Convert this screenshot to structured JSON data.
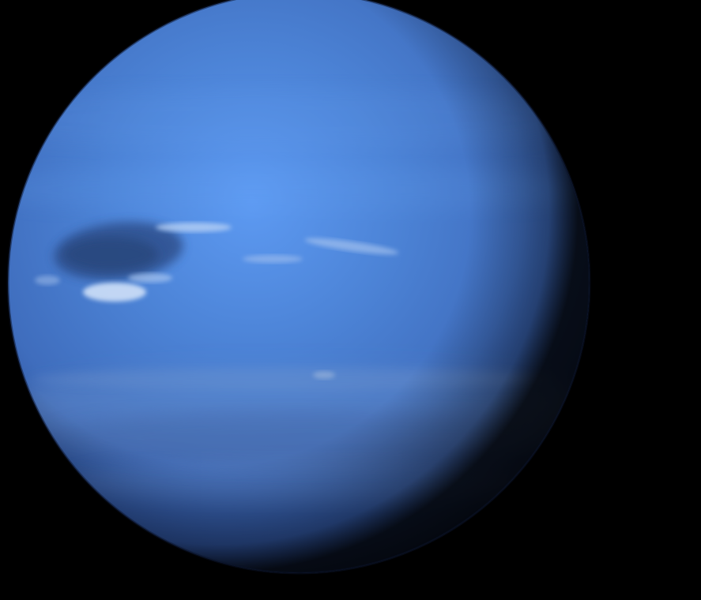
{
  "image": {
    "subject": "planet",
    "colors": {
      "space": "#000000",
      "planet_highlight": "#5a96f0",
      "planet_mid": "#4a7fd0",
      "planet_base": "#3a64b0",
      "planet_edge": "#142452",
      "dark_spot": "#2e4e8a",
      "cloud_white": "#cfe0f8",
      "southern_band": "#5c7fb8"
    }
  }
}
